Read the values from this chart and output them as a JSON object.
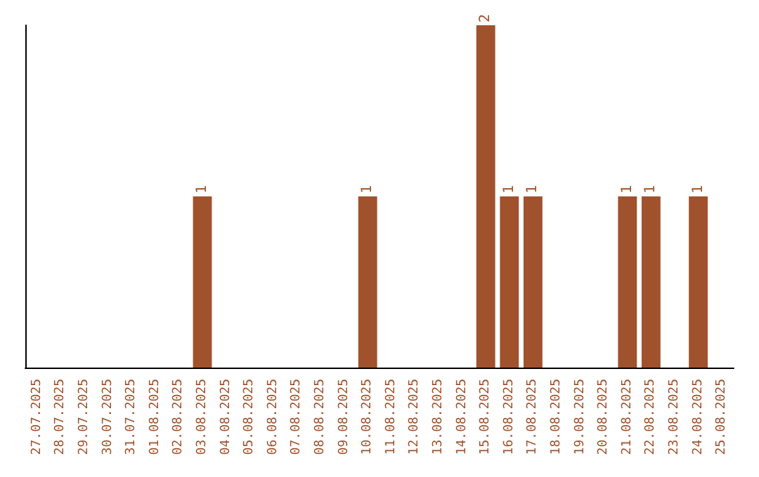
{
  "chart_data": {
    "type": "bar",
    "categories": [
      "27.07.2025",
      "28.07.2025",
      "29.07.2025",
      "30.07.2025",
      "31.07.2025",
      "01.08.2025",
      "02.08.2025",
      "03.08.2025",
      "04.08.2025",
      "05.08.2025",
      "06.08.2025",
      "07.08.2025",
      "08.08.2025",
      "09.08.2025",
      "10.08.2025",
      "11.08.2025",
      "12.08.2025",
      "13.08.2025",
      "14.08.2025",
      "15.08.2025",
      "16.08.2025",
      "17.08.2025",
      "18.08.2025",
      "19.08.2025",
      "20.08.2025",
      "21.08.2025",
      "22.08.2025",
      "23.08.2025",
      "24.08.2025",
      "25.08.2025"
    ],
    "values": [
      0,
      0,
      0,
      0,
      0,
      0,
      0,
      1,
      0,
      0,
      0,
      0,
      0,
      0,
      1,
      0,
      0,
      0,
      0,
      2,
      1,
      1,
      0,
      0,
      0,
      1,
      1,
      0,
      1,
      0
    ],
    "value_labels": [
      null,
      null,
      null,
      null,
      null,
      null,
      null,
      "1",
      null,
      null,
      null,
      null,
      null,
      null,
      "1",
      null,
      null,
      null,
      null,
      "2",
      "1",
      "1",
      null,
      null,
      null,
      "1",
      "1",
      null,
      "1",
      null
    ],
    "color": "#a0522d"
  }
}
